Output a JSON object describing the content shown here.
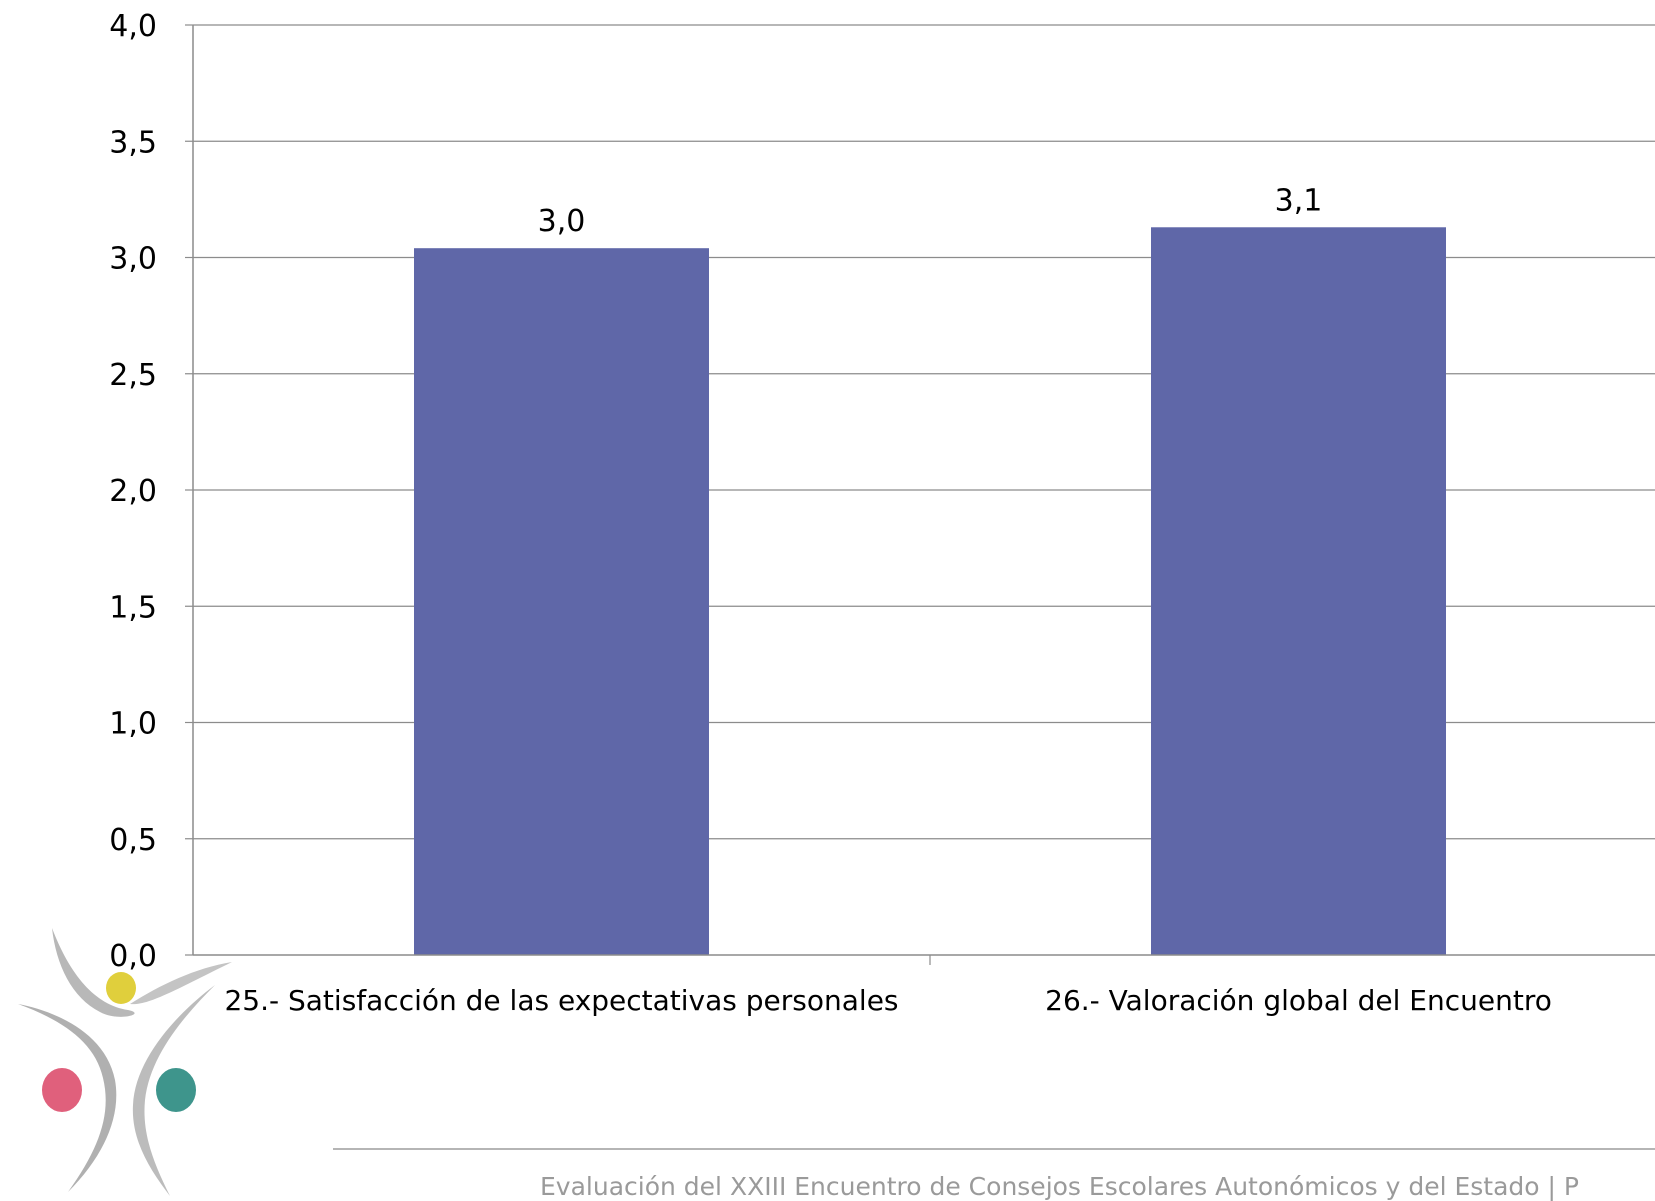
{
  "chart_data": {
    "type": "bar",
    "categories": [
      "25.- Satisfacción de las expectativas personales",
      "26.- Valoración global del Encuentro"
    ],
    "values": [
      3.04,
      3.13
    ],
    "data_labels": [
      "3,0",
      "3,1"
    ],
    "ylim": [
      0,
      4
    ],
    "yticks": [
      "0,0",
      "0,5",
      "1,0",
      "1,5",
      "2,0",
      "2,5",
      "3,0",
      "3,5",
      "4,0"
    ],
    "grid": true,
    "title": "",
    "xlabel": "",
    "ylabel": "",
    "bar_color": "#5f67a8"
  },
  "footer": {
    "text": "Evaluación del XXIII Encuentro de Consejos Escolares Autonómicos y del Estado | P"
  },
  "logo": {
    "name": "consejo-escolar-logo",
    "dot_colors": [
      "#e0cf3c",
      "#e0607c",
      "#3e958c"
    ],
    "swoosh_color": "#b8b8b8"
  }
}
